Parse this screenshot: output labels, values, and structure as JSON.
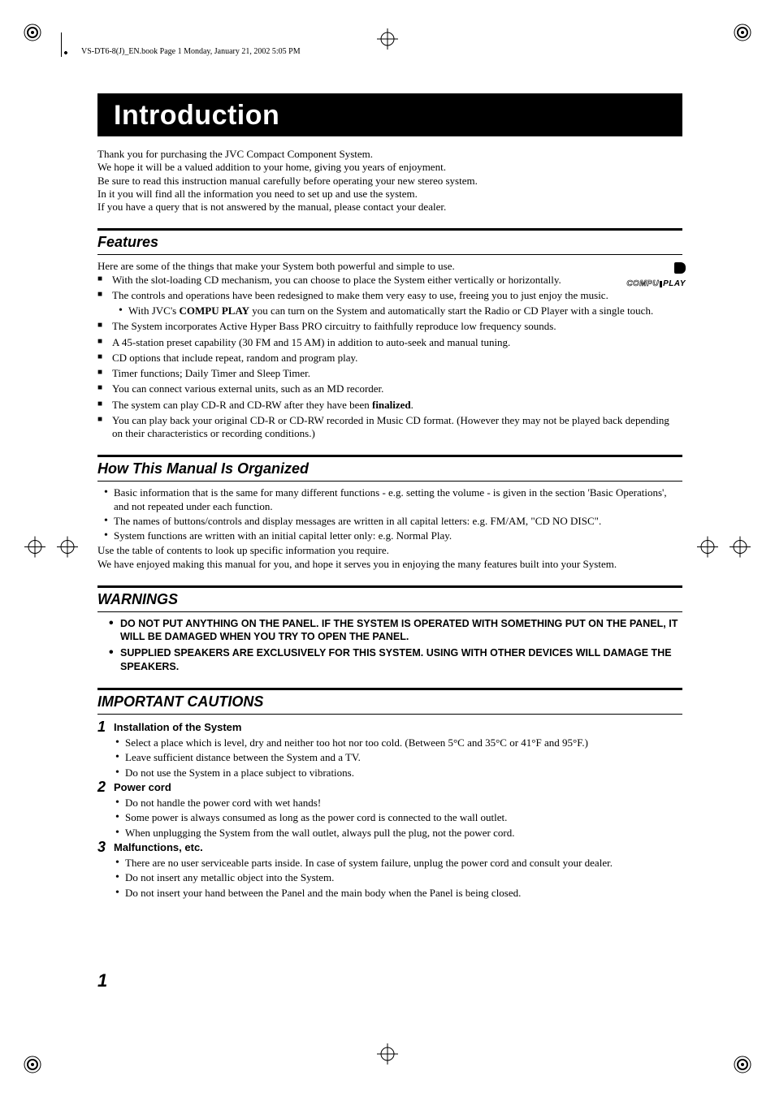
{
  "header_line": "VS-DT6-8(J)_EN.book  Page 1  Monday, January 21, 2002  5:05 PM",
  "title": "Introduction",
  "intro": [
    "Thank you for purchasing the JVC Compact Component System.",
    "We hope it will be a valued addition to your home, giving you years of enjoyment.",
    "Be sure to read this instruction manual carefully before operating your new stereo system.",
    "In it you will find all the information you need to set up and use the system.",
    "If you have a query that is not answered by the manual, please contact your dealer."
  ],
  "features": {
    "heading": "Features",
    "lead": "Here are some of the things that make your System both powerful and simple to use.",
    "items": [
      "With the slot-loading CD mechanism, you can choose to place the System either vertically or horizontally.",
      "The controls and operations have been redesigned to make them very easy to use, freeing you to just enjoy the music.",
      "The System incorporates Active Hyper Bass PRO circuitry to faithfully reproduce low frequency sounds.",
      "A 45-station preset capability (30 FM and 15 AM) in addition to auto-seek and manual tuning.",
      "CD options that include repeat, random and program play.",
      "Timer functions; Daily Timer and Sleep Timer.",
      "You can connect various external units, such as an MD recorder.",
      "The system can play CD-R and CD-RW after they have been ",
      "You can play back your original CD-R or CD-RW recorded in Music CD format. (However they may not be played back depending on their characteristics or recording conditions.)"
    ],
    "finalized": "finalized",
    "compu_sub_pre": "With JVC's ",
    "compu_bold": "COMPU PLAY",
    "compu_sub_post": " you can turn on the System and automatically start the Radio or CD Player with a single touch.",
    "logo_line1": "COMPU",
    "logo_line2": "PLAY"
  },
  "organized": {
    "heading": "How This Manual Is Organized",
    "items": [
      "Basic information that is the same for many different functions - e.g. setting the volume - is given in the section 'Basic Operations', and not repeated under each function.",
      "The names of buttons/controls and display messages are written in all capital letters: e.g. FM/AM, \"CD NO DISC\".",
      "System functions are written with an initial capital letter only: e.g. Normal Play."
    ],
    "tail1": "Use the table of contents to look up specific information you require.",
    "tail2": "We have enjoyed making this manual for you, and hope it serves you in enjoying the many features built into your System."
  },
  "warnings": {
    "heading": "WARNINGS",
    "items": [
      "DO NOT PUT ANYTHING ON THE PANEL. IF THE SYSTEM IS OPERATED WITH SOMETHING PUT ON THE PANEL, IT WILL BE DAMAGED WHEN YOU TRY TO OPEN THE PANEL.",
      "SUPPLIED SPEAKERS ARE EXCLUSIVELY FOR THIS SYSTEM. USING WITH OTHER DEVICES WILL DAMAGE THE SPEAKERS."
    ]
  },
  "cautions": {
    "heading": "IMPORTANT CAUTIONS",
    "groups": [
      {
        "num": "1",
        "title": "Installation of the System",
        "items": [
          "Select a place which is level, dry and neither too hot nor too cold. (Between 5°C and 35°C or 41°F and 95°F.)",
          "Leave sufficient distance between the System and a TV.",
          "Do not use the System in a place subject to vibrations."
        ]
      },
      {
        "num": "2",
        "title": "Power cord",
        "items": [
          "Do not handle the power cord with wet hands!",
          "Some power is always consumed as long as the power cord is connected to the wall outlet.",
          "When unplugging the System from the wall outlet, always pull the plug, not the power cord."
        ]
      },
      {
        "num": "3",
        "title": "Malfunctions, etc.",
        "items": [
          "There are no user serviceable parts inside. In case of system failure, unplug the power cord and consult your dealer.",
          "Do not insert any metallic object into the System.",
          "Do not insert your hand between the Panel and the main body when the Panel is being closed."
        ]
      }
    ]
  },
  "page_number": "1"
}
